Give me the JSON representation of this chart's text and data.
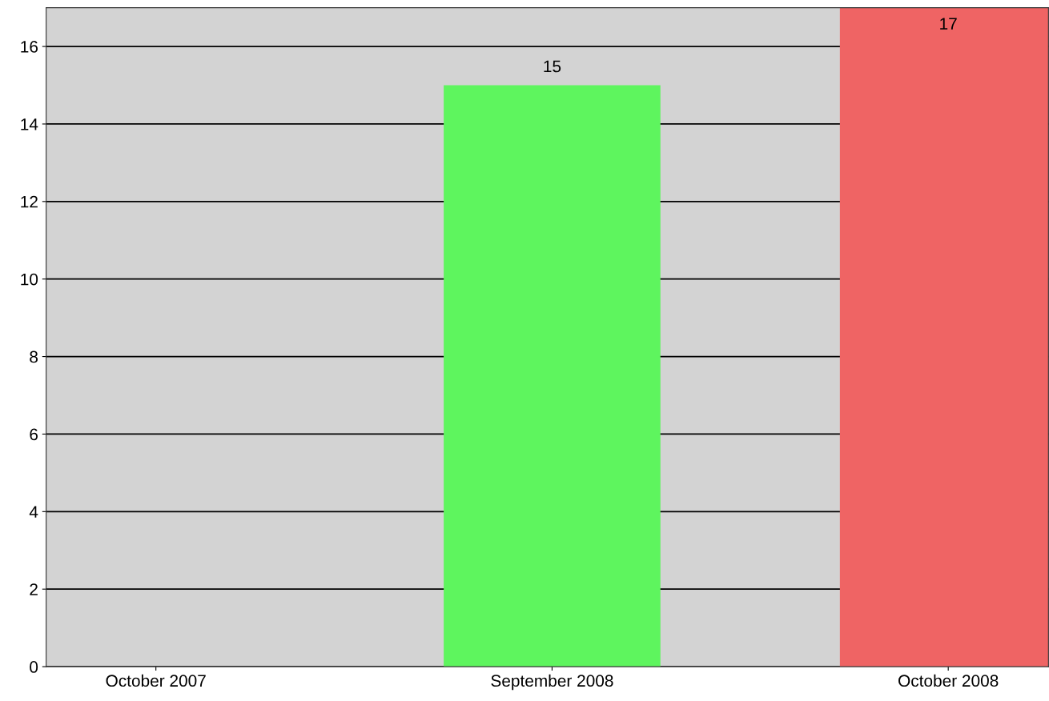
{
  "chart_data": {
    "type": "bar",
    "categories": [
      "October 2007",
      "September 2008",
      "October 2008"
    ],
    "values": [
      0,
      15,
      17
    ],
    "colors": [
      "#5ef55e",
      "#5ef55e",
      "#ef6464"
    ],
    "value_labels": [
      null,
      "15",
      "17"
    ],
    "ylim": [
      0,
      17
    ],
    "yticks": [
      0,
      2,
      4,
      6,
      8,
      10,
      12,
      14,
      16
    ],
    "grid": "y"
  }
}
